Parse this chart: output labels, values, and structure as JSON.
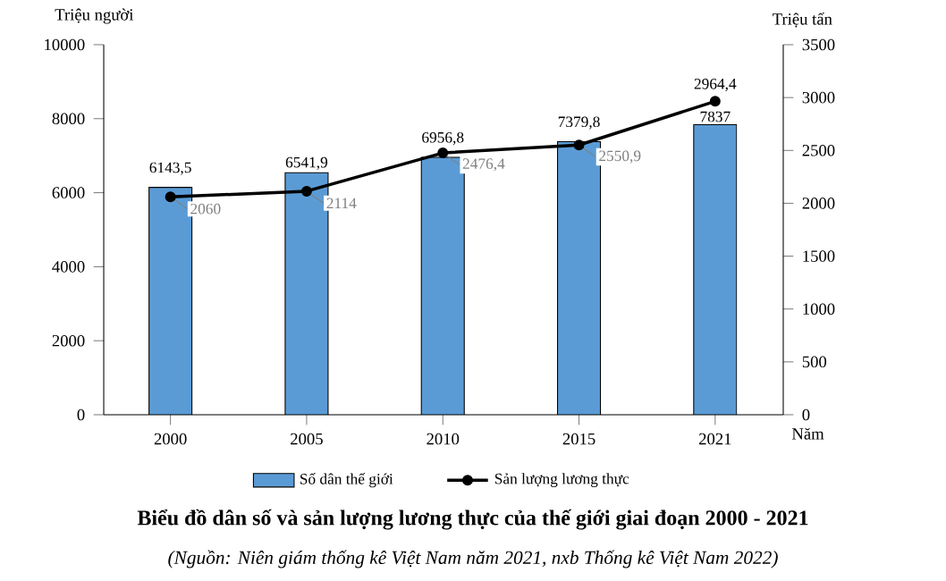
{
  "chart_data": {
    "type": "bar",
    "title": "Biểu đồ dân số và sản lượng lương thực của thế giới giai đoạn 2000 - 2021",
    "annotations": [
      "(Nguồn: Niên giám thống kê Việt Nam năm 2021, nxb Thống kê Việt Nam 2022)"
    ],
    "xlabel": "Năm",
    "ylabel": "Triệu người",
    "y2label": "Triệu tấn",
    "categories": [
      "2000",
      "2005",
      "2010",
      "2015",
      "2021"
    ],
    "series": [
      {
        "name": "Số dân thế giới",
        "color": "#5b9bd5",
        "values": [
          6143.5,
          6541.9,
          6956.8,
          7379.8,
          7837
        ],
        "value_labels": [
          "6143,5",
          "6541,9",
          "6956,8",
          "7379,8",
          "7837"
        ]
      },
      {
        "name": "Sản lượng lương thực",
        "type": "line",
        "axis": "y2",
        "color": "#000000",
        "marker": "circle",
        "values": [
          2060,
          2114,
          2476.4,
          2550.9,
          2964.4
        ],
        "value_labels": [
          "2060",
          "2114",
          "2476,4",
          "2550,9",
          "2964,4"
        ]
      }
    ],
    "ylim": [
      0,
      10000
    ],
    "yticks": [
      0,
      2000,
      4000,
      6000,
      8000,
      10000
    ],
    "y2lim": [
      0,
      3500
    ],
    "y2ticks": [
      0,
      500,
      1000,
      1500,
      2000,
      2500,
      3000,
      3500
    ],
    "grid": false,
    "legend": "bottom"
  }
}
